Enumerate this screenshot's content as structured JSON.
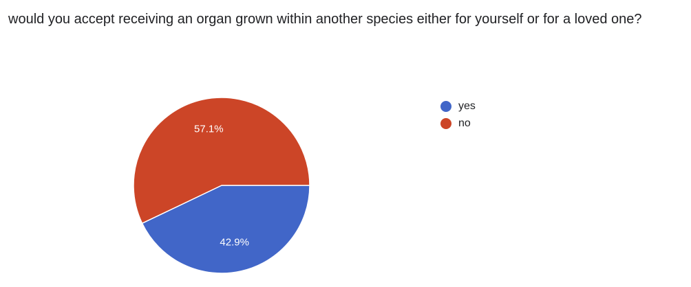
{
  "question": "would you accept receiving an organ grown within another species either for yourself or for a loved one?",
  "chart_data": {
    "type": "pie",
    "title": "would you accept receiving an organ grown within another species either for yourself or for a loved one?",
    "categories": [
      "yes",
      "no"
    ],
    "values": [
      42.9,
      57.1
    ],
    "labels": [
      "42.9%",
      "57.1%"
    ],
    "colors": [
      "#4166c8",
      "#cc4527"
    ],
    "legend_position": "right"
  }
}
